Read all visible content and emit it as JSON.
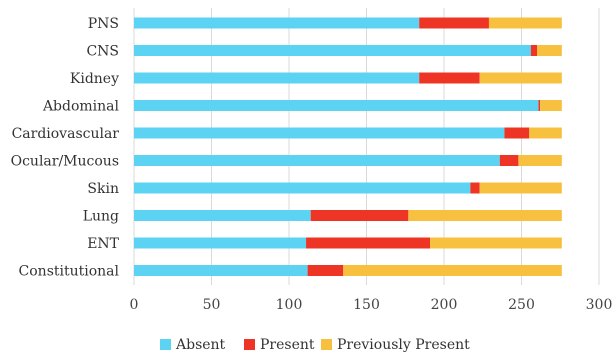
{
  "chart_data": {
    "type": "bar",
    "orientation": "horizontal",
    "stacked": true,
    "categories": [
      "PNS",
      "CNS",
      "Kidney",
      "Abdominal",
      "Cardiovascular",
      "Ocular/Mucous",
      "Skin",
      "Lung",
      "ENT",
      "Constitutional"
    ],
    "series": [
      {
        "name": "Absent",
        "color": "#5dd3f3",
        "values": [
          184,
          256,
          184,
          261,
          239,
          236,
          217,
          114,
          111,
          112
        ]
      },
      {
        "name": "Present",
        "color": "#ee3424",
        "values": [
          45,
          4,
          39,
          1,
          16,
          12,
          6,
          63,
          80,
          23
        ]
      },
      {
        "name": "Previously Present",
        "color": "#f7c03e",
        "values": [
          47,
          16,
          53,
          14,
          21,
          28,
          53,
          99,
          85,
          141
        ]
      }
    ],
    "xlim": [
      0,
      300
    ],
    "xticks": [
      0,
      50,
      100,
      150,
      200,
      250,
      300
    ],
    "grid": "vertical",
    "legend": "bottom"
  }
}
